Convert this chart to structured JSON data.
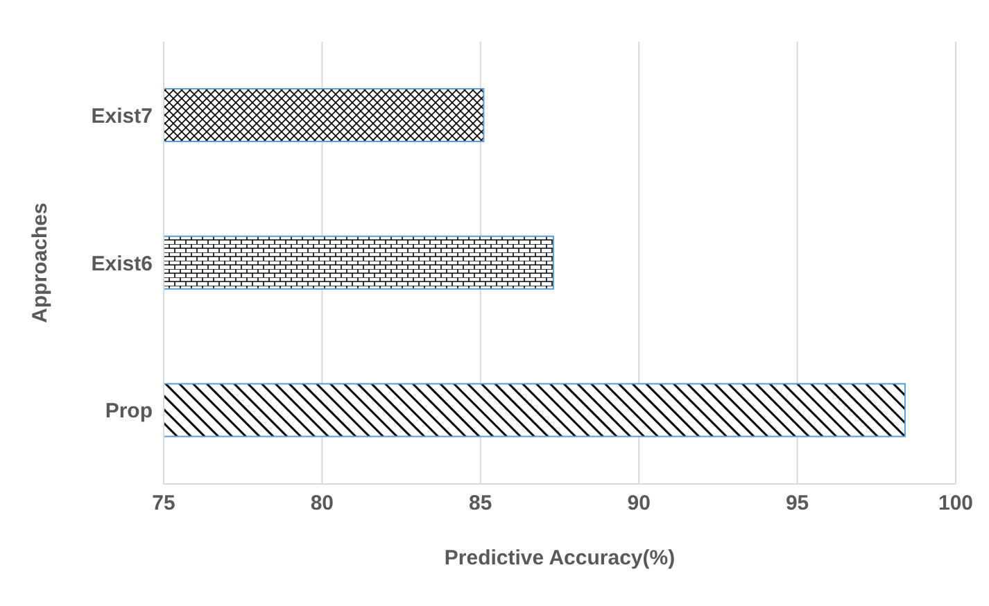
{
  "chart_data": {
    "type": "bar",
    "orientation": "horizontal",
    "xlabel": "Predictive Accuracy(%)",
    "ylabel": "Approaches",
    "categories": [
      "Exist7",
      "Exist6",
      "Prop"
    ],
    "values": [
      85.1,
      87.3,
      98.4
    ],
    "colors": [
      "#5b9bd5",
      "#5b9bd5",
      "#5b9bd5"
    ],
    "xlim": [
      75,
      100
    ],
    "xticks": [
      75,
      80,
      85,
      90,
      95,
      100
    ],
    "grid": "x"
  }
}
